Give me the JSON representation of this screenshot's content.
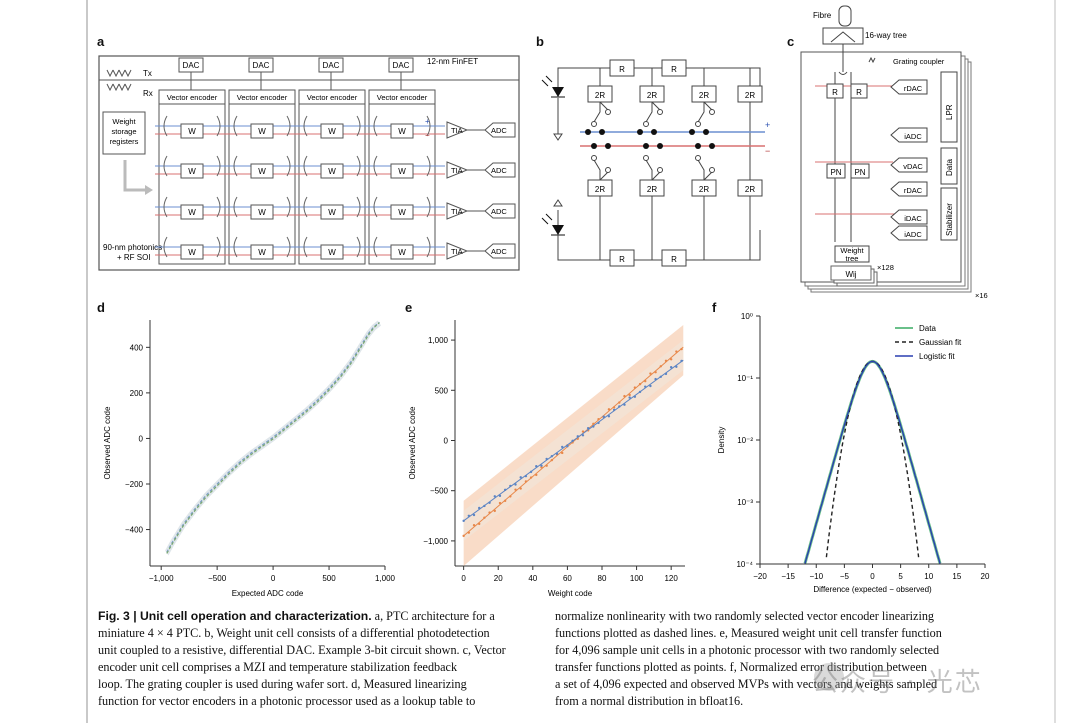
{
  "panels": {
    "a": {
      "letter": "a",
      "process": "12-nm FinFET",
      "photonics": "90-nm photonics",
      "soi": "+ RF SOI",
      "tx": "Tx",
      "rx": "Rx",
      "dac": "DAC",
      "vector_encoder": "Vector encoder",
      "weight_reg": [
        "Weight",
        "storage",
        "registers"
      ],
      "w": "W",
      "tia": "TIA",
      "adc": "ADC",
      "plus": "+",
      "minus": "−"
    },
    "b": {
      "letter": "b",
      "r": "R",
      "r2": "2R",
      "plus": "+",
      "minus": "−"
    },
    "c": {
      "letter": "c",
      "fibre": "Fibre",
      "tree16": "16-way tree",
      "grating": "Grating coupler",
      "r": "R",
      "rdac": "rDAC",
      "idac": "iDAC",
      "iadc": "iADC",
      "vdac": "vDAC",
      "pn": "PN",
      "lpr": "LPR",
      "data": "Data",
      "stabilizer": "Stabilizer",
      "weight_tree": [
        "Weight",
        "tree"
      ],
      "wij": "Wij",
      "x128": "×128",
      "x16": "×16"
    }
  },
  "chart_data": [
    {
      "panel": "d",
      "type": "line",
      "xlabel": "Expected ADC code",
      "ylabel": "Observed ADC code",
      "xlim": [
        -1100,
        1000
      ],
      "ylim": [
        -560,
        520
      ],
      "xticks": [
        "−1,000",
        "−500",
        "0",
        "500",
        "1,000"
      ],
      "xtick_values": [
        -1000,
        -500,
        0,
        500,
        1000
      ],
      "yticks": [
        "400",
        "200",
        "0",
        "−200",
        "−400"
      ],
      "ytick_values": [
        400,
        200,
        0,
        -200,
        -400
      ],
      "series": [
        {
          "color": "#7a9cc4",
          "x": [
            -950,
            -900,
            -800,
            -700,
            -600,
            -500,
            -400,
            -300,
            -200,
            -100,
            0,
            100,
            200,
            300,
            400,
            500,
            600,
            700,
            800,
            850,
            900,
            950
          ],
          "y": [
            -500,
            -455,
            -375,
            -310,
            -250,
            -200,
            -150,
            -105,
            -65,
            -30,
            5,
            45,
            85,
            125,
            170,
            220,
            275,
            340,
            420,
            460,
            490,
            510
          ]
        },
        {
          "color": "#7aa86f",
          "x": [
            -950,
            -900,
            -800,
            -700,
            -600,
            -500,
            -400,
            -300,
            -200,
            -100,
            0,
            100,
            200,
            300,
            400,
            500,
            600,
            700,
            800,
            850,
            900,
            950
          ],
          "y": [
            -505,
            -462,
            -382,
            -318,
            -258,
            -208,
            -158,
            -112,
            -72,
            -36,
            -2,
            38,
            78,
            118,
            162,
            212,
            268,
            332,
            412,
            452,
            486,
            508
          ]
        }
      ]
    },
    {
      "panel": "e",
      "type": "scatter",
      "xlabel": "Weight code",
      "ylabel": "Observed ADC code",
      "xlim": [
        -5,
        128
      ],
      "ylim": [
        -1250,
        1200
      ],
      "xticks": [
        "0",
        "20",
        "40",
        "60",
        "80",
        "100",
        "120"
      ],
      "xtick_values": [
        0,
        20,
        40,
        60,
        80,
        100,
        120
      ],
      "yticks": [
        "1,000",
        "500",
        "0",
        "−500",
        "−1,000"
      ],
      "ytick_values": [
        1000,
        500,
        0,
        -500,
        -1000
      ],
      "band": {
        "x": [
          0,
          127
        ],
        "upper": [
          -600,
          1150
        ],
        "lower": [
          -1250,
          650
        ]
      },
      "series": [
        {
          "color": "#e8884a",
          "x": [
            0,
            127
          ],
          "y": [
            -950,
            930
          ]
        },
        {
          "color": "#5b84c4",
          "x": [
            0,
            127
          ],
          "y": [
            -800,
            800
          ]
        }
      ]
    },
    {
      "panel": "f",
      "type": "line",
      "xlabel": "Difference (expected − observed)",
      "ylabel": "Density",
      "xlim": [
        -20,
        20
      ],
      "ylim_log10": [
        -4,
        0
      ],
      "xticks": [
        "−20",
        "−15",
        "−10",
        "−5",
        "0",
        "5",
        "10",
        "15",
        "20"
      ],
      "xtick_values": [
        -20,
        -15,
        -10,
        -5,
        0,
        5,
        10,
        15,
        20
      ],
      "yticks": [
        "10⁰",
        "10⁻¹",
        "10⁻²",
        "10⁻³",
        "10⁻⁴"
      ],
      "ytick_values": [
        0,
        -1,
        -2,
        -3,
        -4
      ],
      "legend": [
        "Data",
        "Gaussian fit",
        "Logistic fit"
      ],
      "legend_position": "top-right",
      "series": [
        {
          "name": "Data",
          "color": "#6ac08a",
          "model": "logistic",
          "scale": 1.35
        },
        {
          "name": "Gaussian fit",
          "color": "#222222",
          "model": "gaussian",
          "sigma": 2.15
        },
        {
          "name": "Logistic fit",
          "color": "#2a3fb0",
          "model": "logistic",
          "scale": 1.35
        }
      ]
    }
  ],
  "caption": {
    "fig": "Fig. 3 | Unit cell operation and characterization.",
    "left": [
      "a, PTC architecture for a",
      "miniature 4 × 4 PTC. b, Weight unit cell consists of a differential photodetection",
      "unit coupled to a resistive, differential DAC. Example 3-bit circuit shown. c, Vector",
      "encoder unit cell comprises a MZI and temperature stabilization feedback",
      "loop. The grating coupler is used during wafer sort. d, Measured linearizing",
      "function for vector encoders in a photonic processor used as a lookup table to"
    ],
    "right": [
      "normalize nonlinearity with two randomly selected vector encoder linearizing",
      "functions plotted as dashed lines. e, Measured weight unit cell transfer function",
      "for 4,096 sample unit cells in a photonic processor with two randomly selected",
      "transfer functions plotted as points. f, Normalized error distribution between",
      "a set of 4,096 expected and observed MVPs with vectors and weights sampled",
      "from a normal distribution in bfloat16."
    ]
  },
  "watermark": "公众号 · 光芯"
}
